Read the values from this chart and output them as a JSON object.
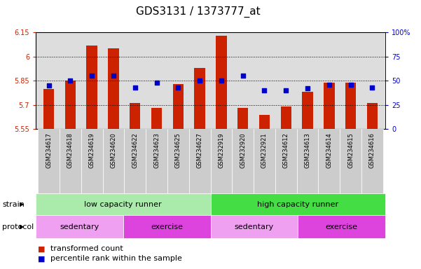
{
  "title": "GDS3131 / 1373777_at",
  "samples": [
    "GSM234617",
    "GSM234618",
    "GSM234619",
    "GSM234620",
    "GSM234622",
    "GSM234623",
    "GSM234625",
    "GSM234627",
    "GSM232919",
    "GSM232920",
    "GSM232921",
    "GSM234612",
    "GSM234613",
    "GSM234614",
    "GSM234615",
    "GSM234616"
  ],
  "transformed_count": [
    5.8,
    5.85,
    6.07,
    6.05,
    5.71,
    5.68,
    5.83,
    5.93,
    6.13,
    5.68,
    5.64,
    5.69,
    5.78,
    5.84,
    5.84,
    5.71
  ],
  "percentile_rank": [
    45,
    50,
    55,
    55,
    43,
    48,
    43,
    50,
    50,
    55,
    40,
    40,
    42,
    46,
    46,
    43
  ],
  "bar_bottom": 5.55,
  "ylim_left": [
    5.55,
    6.15
  ],
  "ylim_right": [
    0,
    100
  ],
  "yticks_left": [
    5.55,
    5.7,
    5.85,
    6.0,
    6.15
  ],
  "yticks_left_labels": [
    "5.55",
    "5.7",
    "5.85",
    "6",
    "6.15"
  ],
  "yticks_right": [
    0,
    25,
    50,
    75,
    100
  ],
  "yticks_right_labels": [
    "0",
    "25",
    "50",
    "75",
    "100%"
  ],
  "bar_color": "#cc2200",
  "dot_color": "#0000cc",
  "strain_groups": [
    {
      "label": "low capacity runner",
      "start": 0,
      "end": 8,
      "color": "#aaeaaa"
    },
    {
      "label": "high capacity runner",
      "start": 8,
      "end": 16,
      "color": "#44dd44"
    }
  ],
  "protocol_groups": [
    {
      "label": "sedentary",
      "start": 0,
      "end": 4,
      "color": "#f0a0f0"
    },
    {
      "label": "exercise",
      "start": 4,
      "end": 8,
      "color": "#dd44dd"
    },
    {
      "label": "sedentary",
      "start": 8,
      "end": 12,
      "color": "#f0a0f0"
    },
    {
      "label": "exercise",
      "start": 12,
      "end": 16,
      "color": "#dd44dd"
    }
  ],
  "legend_bar_label": "transformed count",
  "legend_dot_label": "percentile rank within the sample",
  "strain_label": "strain",
  "protocol_label": "protocol",
  "axis_bg_color": "#dddddd",
  "title_fontsize": 11,
  "tick_fontsize": 7,
  "label_fontsize": 8,
  "annotation_fontsize": 8,
  "group_label_fontsize": 8
}
